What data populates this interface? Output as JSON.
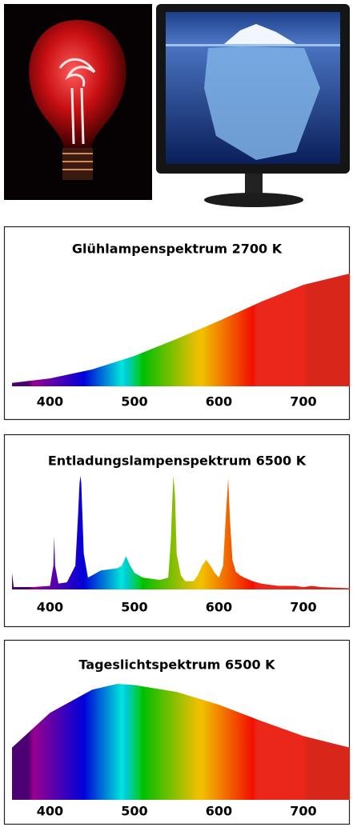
{
  "chart_data": [
    {
      "type": "area",
      "title": "Glühlampenspektrum 2700 K",
      "x": [
        355,
        400,
        450,
        500,
        550,
        600,
        650,
        700,
        755
      ],
      "values": [
        3,
        7,
        15,
        27,
        42,
        58,
        75,
        90,
        100
      ],
      "xlim": [
        355,
        755
      ],
      "xticks": [
        400,
        500,
        600,
        700
      ],
      "ylim": [
        0,
        105
      ]
    },
    {
      "type": "area",
      "title": "Entladungslampenspektrum 6500 K",
      "x": [
        355,
        357,
        360,
        380,
        400,
        404,
        405,
        406,
        410,
        420,
        430,
        433,
        435,
        436,
        437,
        440,
        445,
        450,
        460,
        470,
        480,
        485,
        490,
        495,
        500,
        510,
        520,
        530,
        540,
        543,
        546,
        548,
        550,
        555,
        560,
        570,
        575,
        580,
        585,
        590,
        595,
        600,
        605,
        608,
        611,
        613,
        616,
        620,
        625,
        630,
        640,
        650,
        660,
        670,
        680,
        690,
        700,
        710,
        720,
        755
      ],
      "values": [
        14,
        2,
        2,
        2,
        3,
        20,
        45,
        20,
        5,
        6,
        20,
        60,
        90,
        96,
        90,
        30,
        10,
        12,
        16,
        17,
        18,
        20,
        28,
        20,
        14,
        10,
        9,
        8,
        10,
        40,
        96,
        80,
        30,
        12,
        7,
        7,
        12,
        20,
        25,
        20,
        14,
        10,
        20,
        60,
        94,
        60,
        25,
        15,
        12,
        10,
        7,
        5,
        4,
        3,
        3,
        3,
        2,
        3,
        2,
        1
      ],
      "xlim": [
        355,
        755
      ],
      "xticks": [
        400,
        500,
        600,
        700
      ],
      "ylim": [
        0,
        100
      ]
    },
    {
      "type": "area",
      "title": "Tageslichtspektrum 6500 K",
      "x": [
        355,
        400,
        450,
        480,
        500,
        550,
        600,
        650,
        700,
        755
      ],
      "values": [
        45,
        75,
        95,
        100,
        99,
        93,
        82,
        68,
        55,
        45
      ],
      "xlim": [
        355,
        755
      ],
      "xticks": [
        400,
        500,
        600,
        700
      ],
      "ylim": [
        0,
        100
      ]
    }
  ]
}
